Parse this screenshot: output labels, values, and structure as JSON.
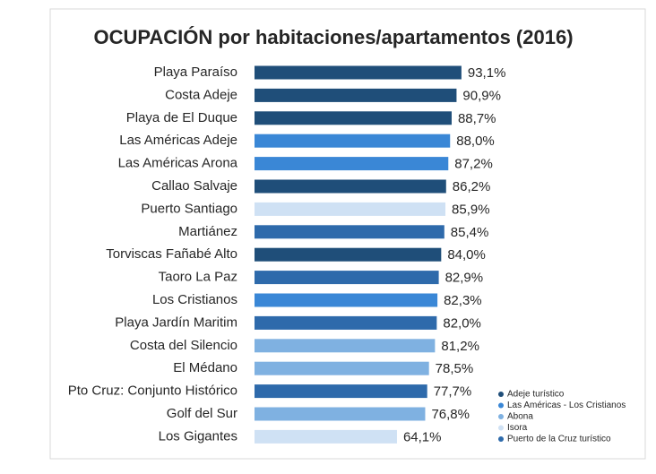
{
  "chart_data": {
    "type": "bar",
    "orientation": "horizontal",
    "title": "OCUPACIÓN por habitaciones/apartamentos (2016)",
    "categories": [
      "Playa Paraíso",
      "Costa Adeje",
      "Playa de El Duque",
      "Las Américas Adeje",
      "Las Américas Arona",
      "Callao Salvaje",
      "Puerto Santiago",
      "Martiánez",
      "Torviscas Fañabé Alto",
      "Taoro La Paz",
      "Los Cristianos",
      "Playa Jardín Maritim",
      "Costa del Silencio",
      "El Médano",
      "Pto Cruz: Conjunto Histórico",
      "Golf del Sur",
      "Los Gigantes"
    ],
    "series": [
      {
        "name": "Adeje turístico",
        "color": "#1f4e79",
        "values": [
          93.1,
          90.9,
          88.7,
          null,
          null,
          86.2,
          null,
          null,
          84.0,
          null,
          null,
          null,
          null,
          null,
          null,
          null,
          null
        ],
        "value_labels": [
          "93,1%",
          "90,9%",
          "88,7%",
          null,
          null,
          "86,2%",
          null,
          null,
          "84,0%",
          null,
          null,
          null,
          null,
          null,
          null,
          null,
          null
        ]
      },
      {
        "name": "Las Américas - Los Cristianos",
        "color": "#3a87d6",
        "values": [
          null,
          null,
          null,
          88.0,
          87.2,
          null,
          null,
          null,
          null,
          null,
          82.3,
          null,
          null,
          null,
          null,
          null,
          null
        ],
        "value_labels": [
          null,
          null,
          null,
          "88,0%",
          "87,2%",
          null,
          null,
          null,
          null,
          null,
          "82,3%",
          null,
          null,
          null,
          null,
          null,
          null
        ]
      },
      {
        "name": "Abona",
        "color": "#7fb1e1",
        "values": [
          null,
          null,
          null,
          null,
          null,
          null,
          null,
          null,
          null,
          null,
          null,
          null,
          81.2,
          78.5,
          null,
          76.8,
          null
        ],
        "value_labels": [
          null,
          null,
          null,
          null,
          null,
          null,
          null,
          null,
          null,
          null,
          null,
          null,
          "81,2%",
          "78,5%",
          null,
          "76,8%",
          null
        ]
      },
      {
        "name": "Isora",
        "color": "#cfe1f4",
        "values": [
          null,
          null,
          null,
          null,
          null,
          null,
          85.9,
          null,
          null,
          null,
          null,
          null,
          null,
          null,
          null,
          null,
          64.1
        ],
        "value_labels": [
          null,
          null,
          null,
          null,
          null,
          null,
          "85,9%",
          null,
          null,
          null,
          null,
          null,
          null,
          null,
          null,
          null,
          "64,1%"
        ]
      },
      {
        "name": "Puerto de la Cruz turístico",
        "color": "#2e6aab",
        "values": [
          null,
          null,
          null,
          null,
          null,
          null,
          null,
          85.4,
          null,
          82.9,
          null,
          82.0,
          null,
          null,
          77.7,
          null,
          null
        ],
        "value_labels": [
          null,
          null,
          null,
          null,
          null,
          null,
          null,
          "85,4%",
          null,
          "82,9%",
          null,
          "82,0%",
          null,
          null,
          "77,7%",
          null,
          null
        ]
      }
    ]
  }
}
